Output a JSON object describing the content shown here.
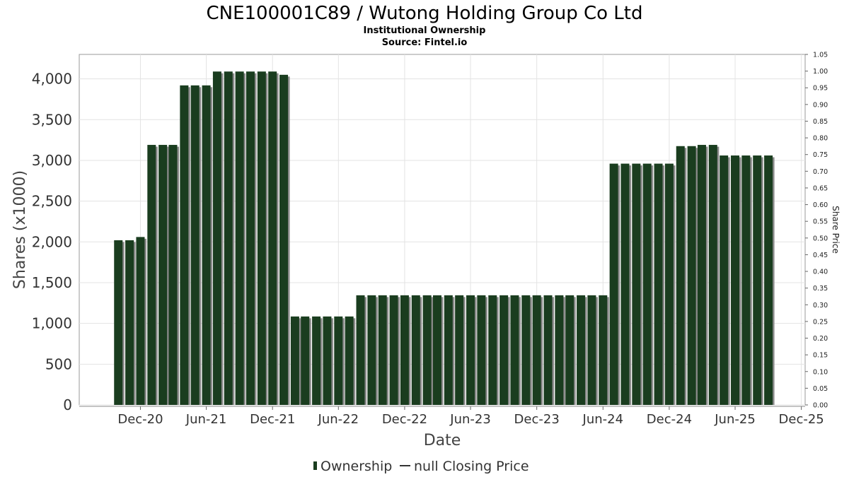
{
  "chart_data": {
    "type": "bar",
    "title": "CNE100001C89 / Wutong Holding Group Co Ltd",
    "subtitle": "Institutional Ownership",
    "source": "Source: Fintel.io",
    "xlabel": "Date",
    "ylabel": "Shares (x1000)",
    "y2label": "Share Price",
    "ylim": [
      0,
      4300
    ],
    "y2lim": [
      0,
      1.05
    ],
    "yticks": [
      "0",
      "500",
      "1,000",
      "1,500",
      "2,000",
      "2,500",
      "3,000",
      "3,500",
      "4,000"
    ],
    "y2ticks": [
      "0.00",
      "0.05",
      "0.10",
      "0.15",
      "0.20",
      "0.25",
      "0.30",
      "0.35",
      "0.40",
      "0.45",
      "0.50",
      "0.55",
      "0.60",
      "0.65",
      "0.70",
      "0.75",
      "0.80",
      "0.85",
      "0.90",
      "0.95",
      "1.00",
      "1.05"
    ],
    "xticks": [
      "Dec-20",
      "Jun-21",
      "Dec-21",
      "Jun-22",
      "Dec-22",
      "Jun-23",
      "Dec-23",
      "Jun-24",
      "Dec-24",
      "Jun-25",
      "Dec-25"
    ],
    "grid": true,
    "legend_position": "bottom",
    "series": [
      {
        "name": "Ownership",
        "color": "#1a3d1f",
        "x": [
          "2020-09-30",
          "2020-10-31",
          "2020-11-30",
          "2020-12-31",
          "2021-01-31",
          "2021-02-28",
          "2021-03-31",
          "2021-04-30",
          "2021-05-31",
          "2021-06-30",
          "2021-07-31",
          "2021-08-31",
          "2021-09-30",
          "2021-10-31",
          "2021-11-30",
          "2021-12-31",
          "2022-01-31",
          "2022-02-28",
          "2022-03-31",
          "2022-04-30",
          "2022-05-31",
          "2022-06-30",
          "2022-07-31",
          "2022-08-31",
          "2022-09-30",
          "2022-10-31",
          "2022-11-30",
          "2022-12-31",
          "2023-01-31",
          "2023-02-28",
          "2023-03-31",
          "2023-04-30",
          "2023-05-31",
          "2023-06-30",
          "2023-07-31",
          "2023-08-31",
          "2023-09-30",
          "2023-10-31",
          "2023-11-30",
          "2023-12-31",
          "2024-01-31",
          "2024-02-29",
          "2024-03-31",
          "2024-04-30",
          "2024-05-31",
          "2024-06-30",
          "2024-07-31",
          "2024-08-31",
          "2024-09-30",
          "2024-10-31",
          "2024-11-30",
          "2024-12-31",
          "2025-01-31",
          "2025-02-28",
          "2025-03-31",
          "2025-04-30",
          "2025-05-31",
          "2025-06-30",
          "2025-07-31",
          "2025-08-31"
        ],
        "values": [
          2020,
          2020,
          2060,
          3190,
          3190,
          3190,
          3920,
          3920,
          3920,
          4090,
          4090,
          4090,
          4090,
          4090,
          4090,
          4050,
          1085,
          1085,
          1085,
          1085,
          1085,
          1085,
          1345,
          1345,
          1345,
          1345,
          1345,
          1345,
          1345,
          1345,
          1345,
          1345,
          1345,
          1345,
          1345,
          1345,
          1345,
          1345,
          1345,
          1345,
          1345,
          1345,
          1345,
          1345,
          1345,
          2960,
          2960,
          2960,
          2960,
          2960,
          2960,
          3175,
          3175,
          3190,
          3190,
          3060,
          3060,
          3060,
          3060,
          3060
        ]
      },
      {
        "name": "null Closing Price",
        "color": "#333333",
        "values": []
      }
    ]
  }
}
